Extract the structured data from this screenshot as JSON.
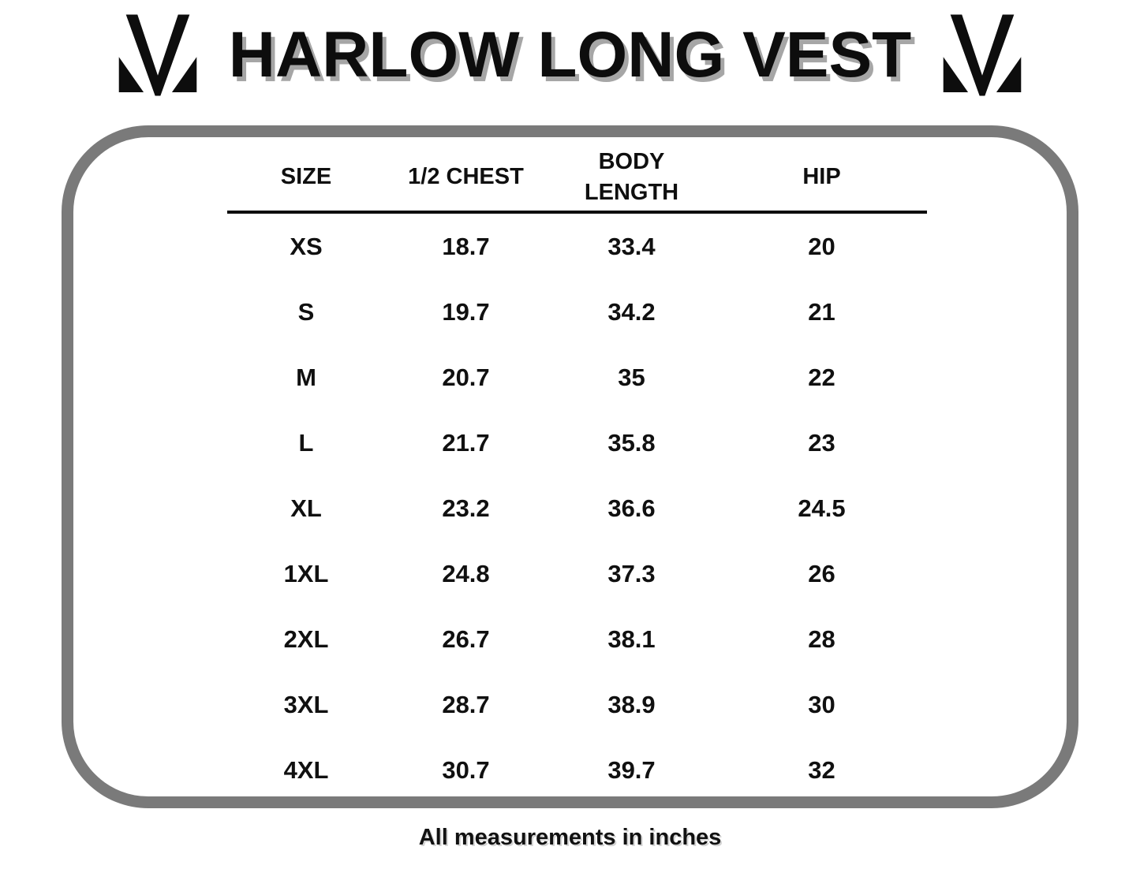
{
  "title": "HARLOW LONG VEST",
  "caption": "All measurements in inches",
  "logo": {
    "name": "brand-m-logo",
    "color": "#0d0d0d"
  },
  "panel": {
    "border_color": "#7a7a7a"
  },
  "table": {
    "headers": [
      "SIZE",
      "1/2 CHEST",
      "BODY LENGTH",
      "HIP"
    ],
    "rows": [
      [
        "XS",
        "18.7",
        "33.4",
        "20"
      ],
      [
        "S",
        "19.7",
        "34.2",
        "21"
      ],
      [
        "M",
        "20.7",
        "35",
        "22"
      ],
      [
        "L",
        "21.7",
        "35.8",
        "23"
      ],
      [
        "XL",
        "23.2",
        "36.6",
        "24.5"
      ],
      [
        "1XL",
        "24.8",
        "37.3",
        "26"
      ],
      [
        "2XL",
        "26.7",
        "38.1",
        "28"
      ],
      [
        "3XL",
        "28.7",
        "38.9",
        "30"
      ],
      [
        "4XL",
        "30.7",
        "39.7",
        "32"
      ]
    ]
  },
  "colors": {
    "text": "#0f0f0f",
    "title_shadow": "#a6a6a6",
    "border_gray": "#7a7a7a"
  }
}
